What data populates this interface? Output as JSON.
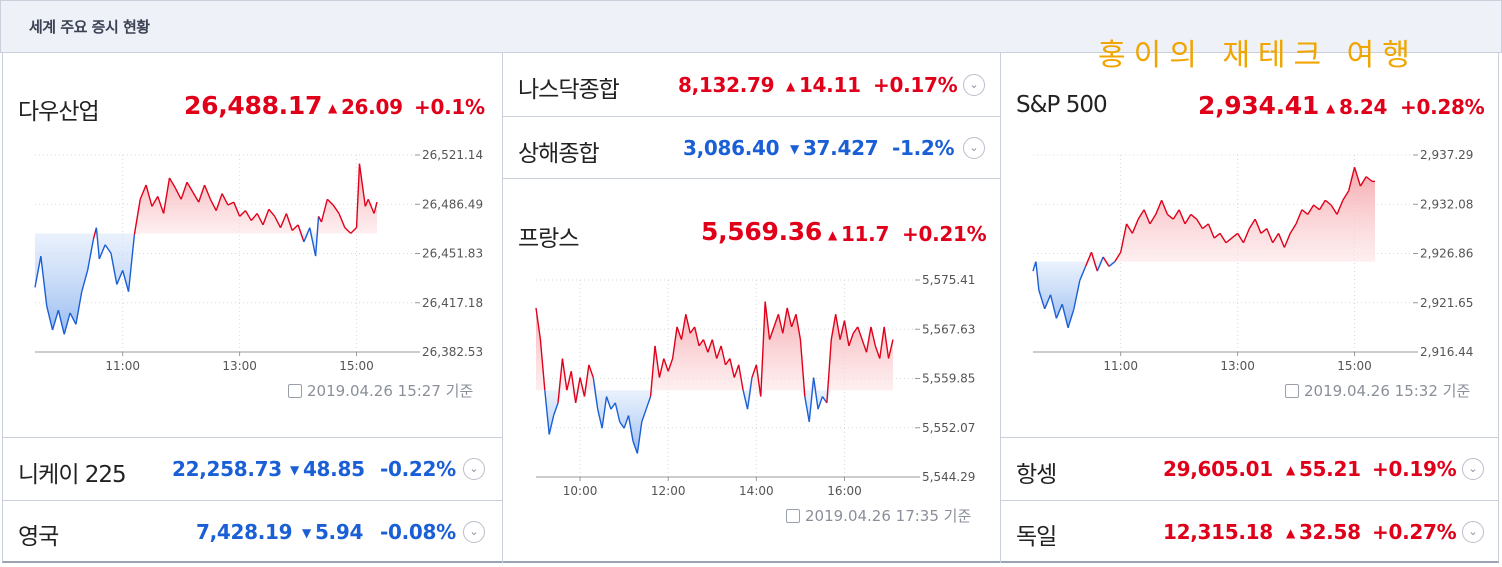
{
  "header": {
    "title": "세계 주요 증시 현황"
  },
  "watermark": "홍이의 재테크 여행",
  "colors": {
    "up": "#e0001a",
    "down": "#1a5fd6"
  },
  "icons": {
    "expand": "chevron-down-icon",
    "clock": "clock-icon"
  },
  "dow": {
    "name": "다우산업",
    "price": "26,488.17",
    "arrow": "▲",
    "change": "26.09",
    "pct": "+0.1%",
    "dir": "up",
    "timestamp": "2019.04.26 15:27 기준",
    "chart_data": {
      "type": "line",
      "y_ticks": [
        "26,521.14",
        "26,486.49",
        "26,451.83",
        "26,417.18",
        "26,382.53"
      ],
      "x_ticks": [
        "11:00",
        "13:00",
        "15:00"
      ],
      "ylim": [
        26382.53,
        26521.14
      ],
      "baseline": 26466,
      "x_range": [
        9.5,
        16.0
      ],
      "x_tick_values": [
        11,
        13,
        15
      ],
      "series": [
        {
          "values": [
            [
              9.5,
              26428
            ],
            [
              9.6,
              26450
            ],
            [
              9.7,
              26415
            ],
            [
              9.8,
              26398
            ],
            [
              9.9,
              26412
            ],
            [
              10.0,
              26395
            ],
            [
              10.1,
              26410
            ],
            [
              10.2,
              26402
            ],
            [
              10.3,
              26425
            ],
            [
              10.4,
              26440
            ],
            [
              10.5,
              26462
            ],
            [
              10.55,
              26470
            ],
            [
              10.6,
              26448
            ],
            [
              10.7,
              26458
            ],
            [
              10.8,
              26452
            ],
            [
              10.9,
              26430
            ],
            [
              11.0,
              26440
            ],
            [
              11.1,
              26425
            ],
            [
              11.2,
              26465
            ],
            [
              11.3,
              26490
            ],
            [
              11.4,
              26500
            ],
            [
              11.5,
              26485
            ],
            [
              11.6,
              26492
            ],
            [
              11.7,
              26480
            ],
            [
              11.8,
              26505
            ],
            [
              11.9,
              26498
            ],
            [
              12.0,
              26490
            ],
            [
              12.1,
              26502
            ],
            [
              12.2,
              26495
            ],
            [
              12.3,
              26488
            ],
            [
              12.4,
              26500
            ],
            [
              12.5,
              26490
            ],
            [
              12.6,
              26482
            ],
            [
              12.7,
              26494
            ],
            [
              12.8,
              26486
            ],
            [
              12.9,
              26488
            ],
            [
              13.0,
              26478
            ],
            [
              13.1,
              26482
            ],
            [
              13.2,
              26475
            ],
            [
              13.3,
              26480
            ],
            [
              13.4,
              26472
            ],
            [
              13.5,
              26483
            ],
            [
              13.6,
              26478
            ],
            [
              13.7,
              26470
            ],
            [
              13.8,
              26480
            ],
            [
              13.9,
              26468
            ],
            [
              14.0,
              26472
            ],
            [
              14.1,
              26460
            ],
            [
              14.2,
              26470
            ],
            [
              14.3,
              26450
            ],
            [
              14.35,
              26478
            ],
            [
              14.4,
              26474
            ],
            [
              14.5,
              26490
            ],
            [
              14.6,
              26486
            ],
            [
              14.7,
              26480
            ],
            [
              14.8,
              26470
            ],
            [
              14.9,
              26466
            ],
            [
              15.0,
              26470
            ],
            [
              15.05,
              26515
            ],
            [
              15.1,
              26500
            ],
            [
              15.15,
              26485
            ],
            [
              15.2,
              26490
            ],
            [
              15.3,
              26480
            ],
            [
              15.35,
              26488
            ]
          ]
        }
      ]
    }
  },
  "nasdaq": {
    "name": "나스닥종합",
    "price": "8,132.79",
    "arrow": "▲",
    "change": "14.11",
    "pct": "+0.17%",
    "dir": "up"
  },
  "shanghai": {
    "name": "상해종합",
    "price": "3,086.40",
    "arrow": "▼",
    "change": "37.427",
    "pct": "-1.2%",
    "dir": "dn"
  },
  "france": {
    "name": "프랑스",
    "price": "5,569.36",
    "arrow": "▲",
    "change": "11.7",
    "pct": "+0.21%",
    "dir": "up",
    "timestamp": "2019.04.26 17:35 기준",
    "chart_data": {
      "type": "line",
      "y_ticks": [
        "5,575.41",
        "5,567.63",
        "5,559.85",
        "5,552.07",
        "5,544.29"
      ],
      "x_ticks": [
        "10:00",
        "12:00",
        "14:00",
        "16:00"
      ],
      "ylim": [
        5544.29,
        5575.41
      ],
      "baseline": 5558.0,
      "x_range": [
        9.0,
        17.6
      ],
      "x_tick_values": [
        10,
        12,
        14,
        16
      ],
      "series": [
        {
          "values": [
            [
              9.0,
              5571
            ],
            [
              9.1,
              5566
            ],
            [
              9.2,
              5558
            ],
            [
              9.3,
              5551
            ],
            [
              9.4,
              5554
            ],
            [
              9.5,
              5556
            ],
            [
              9.6,
              5563
            ],
            [
              9.7,
              5558
            ],
            [
              9.8,
              5561
            ],
            [
              9.9,
              5556
            ],
            [
              10.0,
              5560
            ],
            [
              10.1,
              5557
            ],
            [
              10.2,
              5562
            ],
            [
              10.3,
              5560
            ],
            [
              10.4,
              5555
            ],
            [
              10.5,
              5552
            ],
            [
              10.6,
              5557
            ],
            [
              10.7,
              5555
            ],
            [
              10.8,
              5556
            ],
            [
              10.9,
              5553
            ],
            [
              11.0,
              5552
            ],
            [
              11.1,
              5554
            ],
            [
              11.2,
              5550
            ],
            [
              11.3,
              5548
            ],
            [
              11.4,
              5553
            ],
            [
              11.5,
              5555
            ],
            [
              11.6,
              5557
            ],
            [
              11.7,
              5565
            ],
            [
              11.8,
              5560
            ],
            [
              11.9,
              5563
            ],
            [
              12.0,
              5561
            ],
            [
              12.1,
              5563
            ],
            [
              12.2,
              5568
            ],
            [
              12.3,
              5566
            ],
            [
              12.4,
              5570
            ],
            [
              12.5,
              5567
            ],
            [
              12.6,
              5568
            ],
            [
              12.7,
              5565
            ],
            [
              12.8,
              5566
            ],
            [
              12.9,
              5564
            ],
            [
              13.0,
              5566
            ],
            [
              13.1,
              5563
            ],
            [
              13.2,
              5565
            ],
            [
              13.3,
              5562
            ],
            [
              13.4,
              5563
            ],
            [
              13.5,
              5560
            ],
            [
              13.6,
              5562
            ],
            [
              13.7,
              5558
            ],
            [
              13.8,
              5555
            ],
            [
              13.9,
              5560
            ],
            [
              14.0,
              5562
            ],
            [
              14.1,
              5557
            ],
            [
              14.2,
              5572
            ],
            [
              14.3,
              5566
            ],
            [
              14.4,
              5568
            ],
            [
              14.5,
              5570
            ],
            [
              14.6,
              5567
            ],
            [
              14.7,
              5571
            ],
            [
              14.8,
              5568
            ],
            [
              14.9,
              5570
            ],
            [
              15.0,
              5566
            ],
            [
              15.1,
              5557
            ],
            [
              15.2,
              5553
            ],
            [
              15.3,
              5560
            ],
            [
              15.4,
              5555
            ],
            [
              15.5,
              5557
            ],
            [
              15.6,
              5556
            ],
            [
              15.7,
              5566
            ],
            [
              15.8,
              5570
            ],
            [
              15.9,
              5566
            ],
            [
              16.0,
              5569
            ],
            [
              16.1,
              5565
            ],
            [
              16.2,
              5567
            ],
            [
              16.3,
              5568
            ],
            [
              16.4,
              5566
            ],
            [
              16.5,
              5564
            ],
            [
              16.6,
              5568
            ],
            [
              16.7,
              5565
            ],
            [
              16.8,
              5563
            ],
            [
              16.9,
              5568
            ],
            [
              17.0,
              5563
            ],
            [
              17.1,
              5566
            ]
          ]
        }
      ]
    }
  },
  "sp500": {
    "name": "S&P 500",
    "price": "2,934.41",
    "arrow": "▲",
    "change": "8.24",
    "pct": "+0.28%",
    "dir": "up",
    "timestamp": "2019.04.26 15:32 기준",
    "chart_data": {
      "type": "line",
      "y_ticks": [
        "2,937.29",
        "2,932.08",
        "2,926.86",
        "2,921.65",
        "2,916.44"
      ],
      "x_ticks": [
        "11:00",
        "13:00",
        "15:00"
      ],
      "ylim": [
        2916.44,
        2937.29
      ],
      "baseline": 2926.0,
      "x_range": [
        9.5,
        16.0
      ],
      "x_tick_values": [
        11,
        13,
        15
      ],
      "series": [
        {
          "values": [
            [
              9.5,
              2925
            ],
            [
              9.55,
              2926
            ],
            [
              9.6,
              2923
            ],
            [
              9.7,
              2921
            ],
            [
              9.8,
              2922.5
            ],
            [
              9.9,
              2920
            ],
            [
              10.0,
              2921.5
            ],
            [
              10.1,
              2919
            ],
            [
              10.2,
              2921
            ],
            [
              10.3,
              2924
            ],
            [
              10.4,
              2925.5
            ],
            [
              10.5,
              2927
            ],
            [
              10.6,
              2925
            ],
            [
              10.7,
              2926.5
            ],
            [
              10.8,
              2925.5
            ],
            [
              10.9,
              2926
            ],
            [
              11.0,
              2927
            ],
            [
              11.1,
              2930
            ],
            [
              11.2,
              2929
            ],
            [
              11.3,
              2930.5
            ],
            [
              11.4,
              2931.5
            ],
            [
              11.5,
              2930
            ],
            [
              11.6,
              2931
            ],
            [
              11.7,
              2932.5
            ],
            [
              11.8,
              2931
            ],
            [
              11.9,
              2930.5
            ],
            [
              12.0,
              2931.5
            ],
            [
              12.1,
              2930
            ],
            [
              12.2,
              2931
            ],
            [
              12.3,
              2930.5
            ],
            [
              12.4,
              2929.5
            ],
            [
              12.5,
              2930
            ],
            [
              12.6,
              2928.5
            ],
            [
              12.7,
              2929
            ],
            [
              12.8,
              2928
            ],
            [
              12.9,
              2928.5
            ],
            [
              13.0,
              2929
            ],
            [
              13.1,
              2928
            ],
            [
              13.2,
              2929.5
            ],
            [
              13.3,
              2930.5
            ],
            [
              13.4,
              2929
            ],
            [
              13.5,
              2929.5
            ],
            [
              13.6,
              2928
            ],
            [
              13.7,
              2929
            ],
            [
              13.8,
              2927.5
            ],
            [
              13.9,
              2929
            ],
            [
              14.0,
              2930
            ],
            [
              14.1,
              2931.5
            ],
            [
              14.2,
              2931
            ],
            [
              14.3,
              2932
            ],
            [
              14.4,
              2931.5
            ],
            [
              14.5,
              2932.5
            ],
            [
              14.6,
              2932
            ],
            [
              14.7,
              2931
            ],
            [
              14.8,
              2932.5
            ],
            [
              14.9,
              2933.5
            ],
            [
              15.0,
              2936
            ],
            [
              15.05,
              2935
            ],
            [
              15.1,
              2934
            ],
            [
              15.2,
              2935
            ],
            [
              15.3,
              2934.5
            ],
            [
              15.35,
              2934.5
            ]
          ]
        }
      ]
    }
  },
  "nikkei": {
    "name": "니케이 225",
    "price": "22,258.73",
    "arrow": "▼",
    "change": "48.85",
    "pct": "-0.22%",
    "dir": "dn"
  },
  "uk": {
    "name": "영국",
    "price": "7,428.19",
    "arrow": "▼",
    "change": "5.94",
    "pct": "-0.08%",
    "dir": "dn"
  },
  "hangseng": {
    "name": "항셍",
    "price": "29,605.01",
    "arrow": "▲",
    "change": "55.21",
    "pct": "+0.19%",
    "dir": "up"
  },
  "germany": {
    "name": "독일",
    "price": "12,315.18",
    "arrow": "▲",
    "change": "32.58",
    "pct": "+0.27%",
    "dir": "up"
  }
}
